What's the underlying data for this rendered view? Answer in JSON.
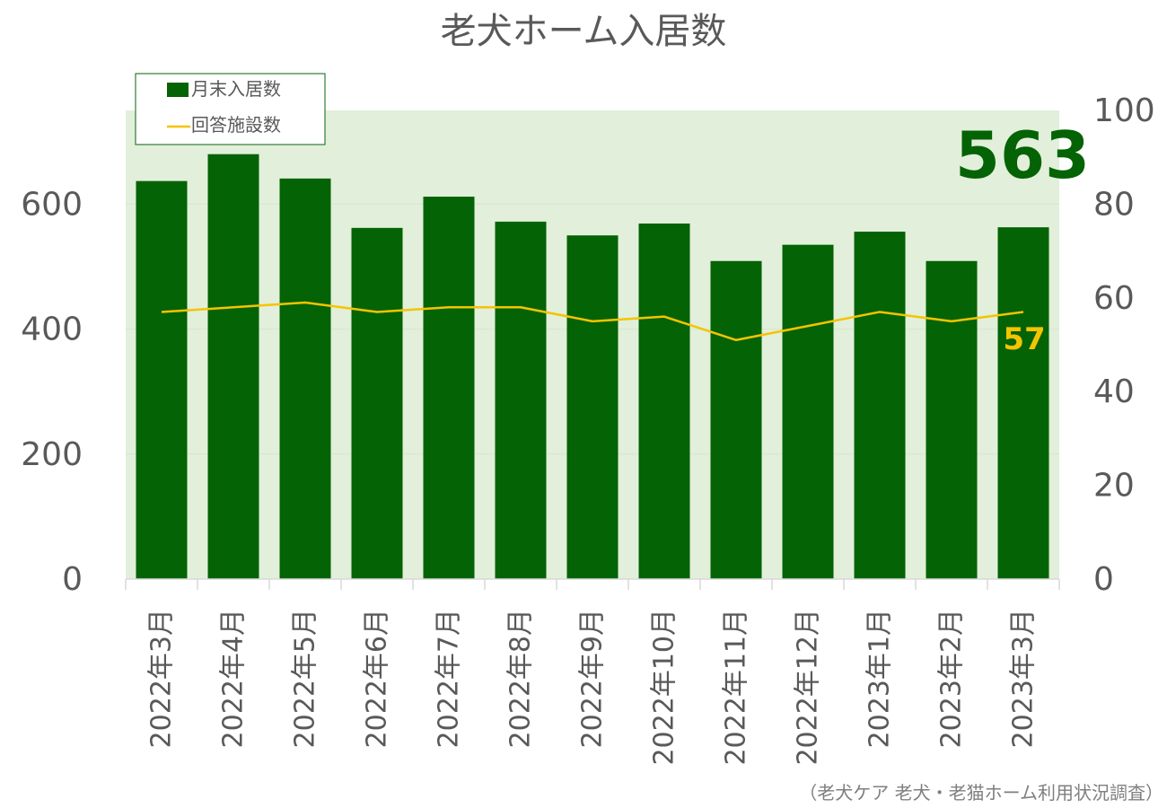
{
  "chart_data": {
    "type": "bar",
    "title": "老犬ホーム入居数",
    "categories": [
      "2022年3月",
      "2022年4月",
      "2022年5月",
      "2022年6月",
      "2022年7月",
      "2022年8月",
      "2022年9月",
      "2022年10月",
      "2022年11月",
      "2022年12月",
      "2023年1月",
      "2023年2月",
      "2023年3月"
    ],
    "series": [
      {
        "name": "月末入居数",
        "type": "bar",
        "axis": "left",
        "color": "#046304",
        "values": [
          637,
          680,
          641,
          562,
          612,
          572,
          550,
          569,
          509,
          535,
          556,
          509,
          563
        ]
      },
      {
        "name": "回答施設数",
        "type": "line",
        "axis": "right",
        "color": "#F5C400",
        "values": [
          57,
          58,
          59,
          57,
          58,
          58,
          55,
          56,
          51,
          54,
          57,
          55,
          57
        ]
      }
    ],
    "left_axis": {
      "ylim": [
        0,
        750
      ],
      "ticks": [
        "0",
        "200",
        "400",
        "600"
      ]
    },
    "right_axis": {
      "ylim": [
        0,
        100
      ],
      "ticks": [
        "0",
        "20",
        "40",
        "60",
        "80",
        "100"
      ]
    },
    "highlight_bar_value": "563",
    "highlight_line_value": "57",
    "legend_position": "top-left",
    "plot_background": "#E2EFDA",
    "source": "（老犬ケア 老犬・老猫ホーム利用状況調査）"
  }
}
